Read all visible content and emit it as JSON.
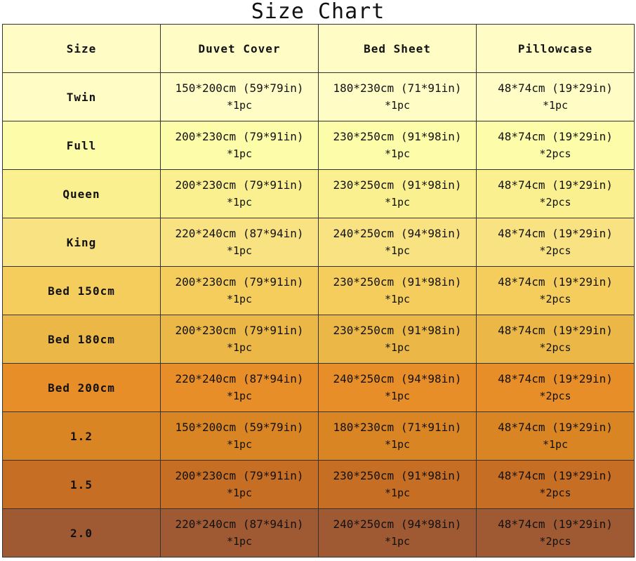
{
  "title": "Size Chart",
  "headers": [
    "Size",
    "Duvet Cover",
    "Bed Sheet",
    "Pillowcase"
  ],
  "header_color": "#fffdc5",
  "rows": [
    {
      "size": "Twin",
      "color": "#fffdc5",
      "duvet": [
        "150*200cm (59*79in)",
        "*1pc"
      ],
      "sheet": [
        "180*230cm (71*91in)",
        "*1pc"
      ],
      "pillow": [
        "48*74cm (19*29in)",
        "*1pc"
      ]
    },
    {
      "size": "Full",
      "color": "#fdfca8",
      "duvet": [
        "200*230cm (79*91in)",
        "*1pc"
      ],
      "sheet": [
        "230*250cm (91*98in)",
        "*1pc"
      ],
      "pillow": [
        "48*74cm (19*29in)",
        "*2pcs"
      ]
    },
    {
      "size": "Queen",
      "color": "#fbf08f",
      "duvet": [
        "200*230cm (79*91in)",
        "*1pc"
      ],
      "sheet": [
        "230*250cm (91*98in)",
        "*1pc"
      ],
      "pillow": [
        "48*74cm (19*29in)",
        "*2pcs"
      ]
    },
    {
      "size": "King",
      "color": "#f9e282",
      "duvet": [
        "220*240cm (87*94in)",
        "*1pc"
      ],
      "sheet": [
        "240*250cm (94*98in)",
        "*1pc"
      ],
      "pillow": [
        "48*74cm (19*29in)",
        "*2pcs"
      ]
    },
    {
      "size": "Bed 150cm",
      "color": "#f4cd5c",
      "duvet": [
        "200*230cm (79*91in)",
        "*1pc"
      ],
      "sheet": [
        "230*250cm (91*98in)",
        "*1pc"
      ],
      "pillow": [
        "48*74cm (19*29in)",
        "*2pcs"
      ]
    },
    {
      "size": "Bed 180cm",
      "color": "#ebb848",
      "duvet": [
        "200*230cm (79*91in)",
        "*1pc"
      ],
      "sheet": [
        "230*250cm (91*98in)",
        "*1pc"
      ],
      "pillow": [
        "48*74cm (19*29in)",
        "*2pcs"
      ]
    },
    {
      "size": "Bed 200cm",
      "color": "#e88e28",
      "duvet": [
        "220*240cm (87*94in)",
        "*1pc"
      ],
      "sheet": [
        "240*250cm (94*98in)",
        "*1pc"
      ],
      "pillow": [
        "48*74cm (19*29in)",
        "*2pcs"
      ]
    },
    {
      "size": "1.2",
      "color": "#d98524",
      "duvet": [
        "150*200cm (59*79in)",
        "*1pc"
      ],
      "sheet": [
        "180*230cm (71*91in)",
        "*1pc"
      ],
      "pillow": [
        "48*74cm (19*29in)",
        "*1pc"
      ]
    },
    {
      "size": "1.5",
      "color": "#c56e24",
      "duvet": [
        "200*230cm (79*91in)",
        "*1pc"
      ],
      "sheet": [
        "230*250cm (91*98in)",
        "*1pc"
      ],
      "pillow": [
        "48*74cm (19*29in)",
        "*2pcs"
      ]
    },
    {
      "size": "2.0",
      "color": "#9f5a34",
      "duvet": [
        "220*240cm (87*94in)",
        "*1pc"
      ],
      "sheet": [
        "240*250cm (94*98in)",
        "*1pc"
      ],
      "pillow": [
        "48*74cm (19*29in)",
        "*2pcs"
      ]
    }
  ]
}
